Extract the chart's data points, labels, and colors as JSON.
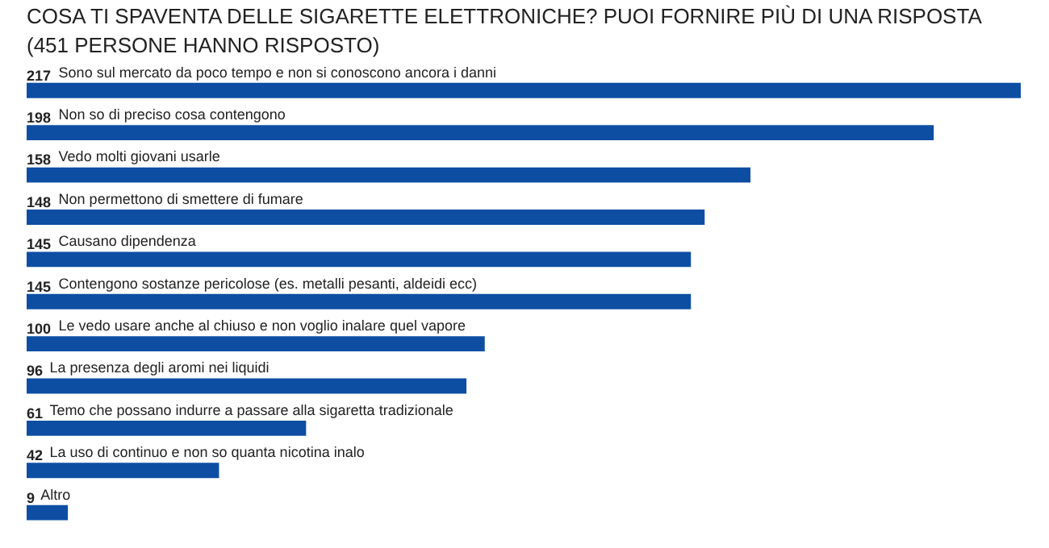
{
  "chart_data": {
    "type": "bar",
    "orientation": "horizontal",
    "title": "COSA TI SPAVENTA DELLE SIGARETTE ELETTRONICHE? PUOI FORNIRE PIÙ DI UNA RISPOSTA",
    "subtitle": "(451 PERSONE HANNO RISPOSTO)",
    "categories": [
      "Sono sul mercato da poco tempo e non si conoscono ancora i danni",
      "Non so di preciso cosa contengono",
      "Vedo molti giovani usarle",
      "Non permettono di smettere di fumare",
      "Causano dipendenza",
      "Contengono sostanze pericolose (es. metalli pesanti, aldeidi ecc)",
      "Le vedo usare anche al chiuso e non voglio inalare quel vapore",
      "La presenza degli aromi nei liquidi",
      "Temo che possano indurre a passare alla sigaretta tradizionale",
      "La uso di continuo e non so quanta nicotina inalo",
      "Altro"
    ],
    "values": [
      217,
      198,
      158,
      148,
      145,
      145,
      100,
      96,
      61,
      42,
      9
    ],
    "color": "#0d4ea3",
    "data_labels": true,
    "grid": false
  }
}
